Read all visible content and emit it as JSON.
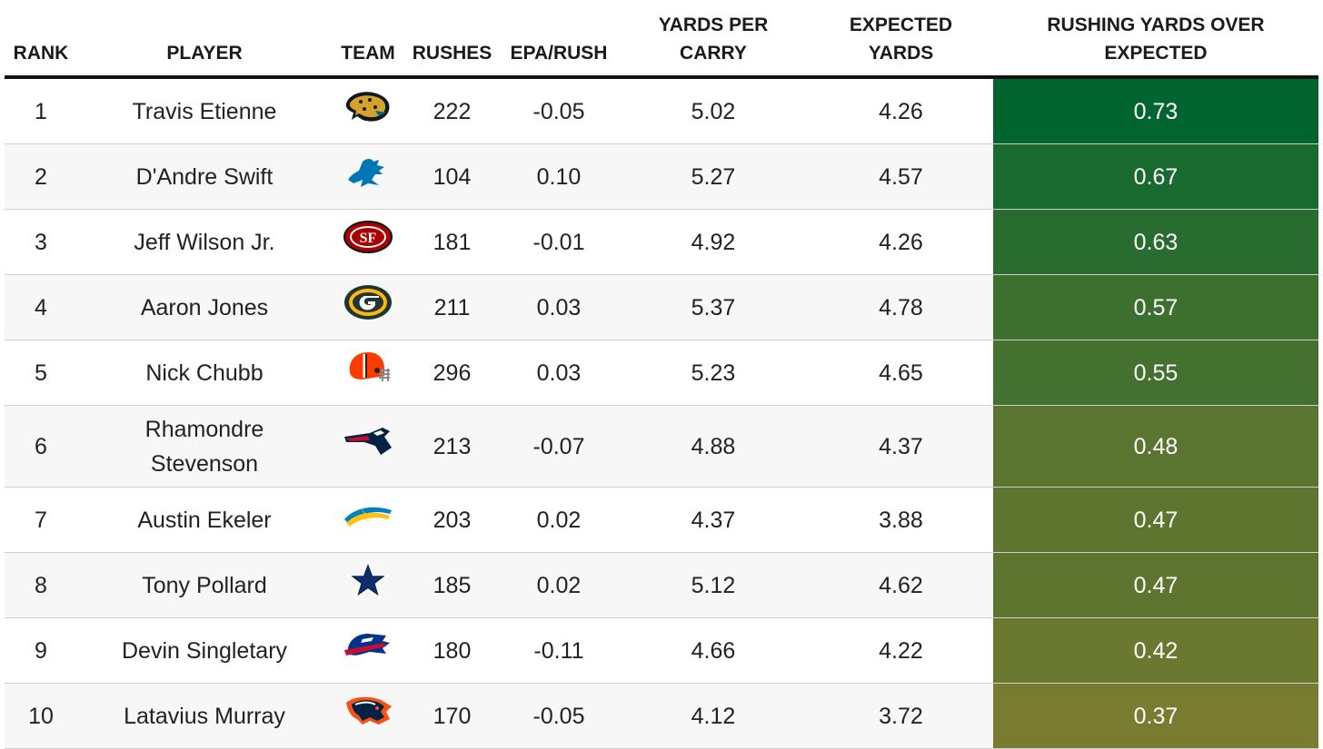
{
  "chart_data": {
    "type": "table",
    "columns": [
      "RANK",
      "PLAYER",
      "TEAM",
      "RUSHES",
      "EPA/RUSH",
      "YARDS PER CARRY",
      "EXPECTED YARDS",
      "RUSHING YARDS OVER EXPECTED"
    ],
    "header_lines": {
      "ypc": [
        "YARDS PER",
        "CARRY"
      ],
      "exp": [
        "EXPECTED",
        "YARDS"
      ],
      "ryoe": [
        "RUSHING YARDS OVER",
        "EXPECTED"
      ]
    },
    "rows": [
      {
        "rank": "1",
        "player": "Travis Etienne",
        "team_icon": "jaguars-logo-icon",
        "rushes": "222",
        "epa": "-0.05",
        "ypc": "5.02",
        "exp": "4.26",
        "ryoe": "0.73",
        "ryoe_color": "#02652f"
      },
      {
        "rank": "2",
        "player": "D'Andre Swift",
        "team_icon": "lions-logo-icon",
        "rushes": "104",
        "epa": "0.10",
        "ypc": "5.27",
        "exp": "4.57",
        "ryoe": "0.67",
        "ryoe_color": "#196a2f"
      },
      {
        "rank": "3",
        "player": "Jeff Wilson Jr.",
        "team_icon": "49ers-logo-icon",
        "rushes": "181",
        "epa": "-0.01",
        "ypc": "4.92",
        "exp": "4.26",
        "ryoe": "0.63",
        "ryoe_color": "#286c2f"
      },
      {
        "rank": "4",
        "player": "Aaron Jones",
        "team_icon": "packers-logo-icon",
        "rushes": "211",
        "epa": "0.03",
        "ypc": "5.37",
        "exp": "4.78",
        "ryoe": "0.57",
        "ryoe_color": "#3d6f2f"
      },
      {
        "rank": "5",
        "player": "Nick Chubb",
        "team_icon": "browns-logo-icon",
        "rushes": "296",
        "epa": "0.03",
        "ypc": "5.23",
        "exp": "4.65",
        "ryoe": "0.55",
        "ryoe_color": "#44712f"
      },
      {
        "rank": "6",
        "player": "Rhamondre Stevenson",
        "player_lines": [
          "Rhamondre",
          "Stevenson"
        ],
        "team_icon": "patriots-logo-icon",
        "rushes": "213",
        "epa": "-0.07",
        "ypc": "4.88",
        "exp": "4.37",
        "ryoe": "0.48",
        "ryoe_color": "#5a752f"
      },
      {
        "rank": "7",
        "player": "Austin Ekeler",
        "team_icon": "chargers-logo-icon",
        "rushes": "203",
        "epa": "0.02",
        "ypc": "4.37",
        "exp": "3.88",
        "ryoe": "0.47",
        "ryoe_color": "#5d752f"
      },
      {
        "rank": "8",
        "player": "Tony Pollard",
        "team_icon": "cowboys-logo-icon",
        "rushes": "185",
        "epa": "0.02",
        "ypc": "5.12",
        "exp": "4.62",
        "ryoe": "0.47",
        "ryoe_color": "#5d752f"
      },
      {
        "rank": "9",
        "player": "Devin Singletary",
        "team_icon": "bills-logo-icon",
        "rushes": "180",
        "epa": "-0.11",
        "ypc": "4.66",
        "exp": "4.22",
        "ryoe": "0.42",
        "ryoe_color": "#6a7830"
      },
      {
        "rank": "10",
        "player": "Latavius Murray",
        "team_icon": "broncos-logo-icon",
        "rushes": "170",
        "epa": "-0.05",
        "ypc": "4.12",
        "exp": "3.72",
        "ryoe": "0.37",
        "ryoe_color": "#797b30"
      }
    ]
  }
}
